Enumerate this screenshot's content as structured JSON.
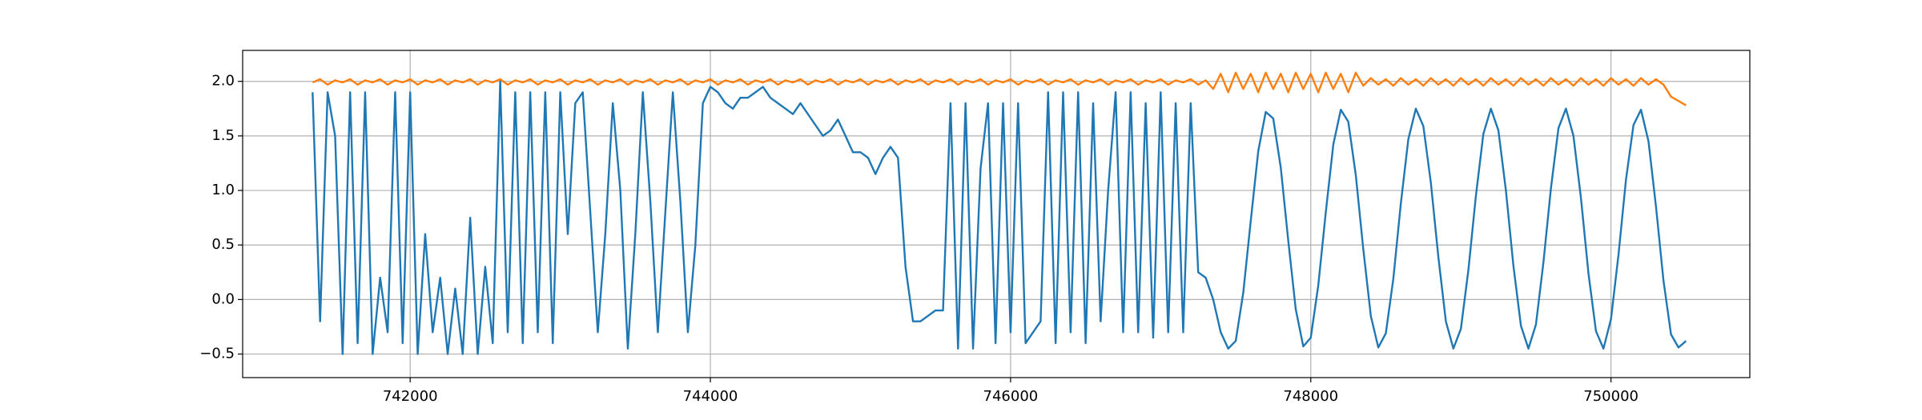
{
  "chart_data": {
    "type": "line",
    "x": [
      741350,
      741400,
      741450,
      741500,
      741550,
      741600,
      741650,
      741700,
      741750,
      741800,
      741850,
      741900,
      741950,
      742000,
      742050,
      742100,
      742150,
      742200,
      742250,
      742300,
      742350,
      742400,
      742450,
      742500,
      742550,
      742600,
      742650,
      742700,
      742750,
      742800,
      742850,
      742900,
      742950,
      743000,
      743050,
      743100,
      743150,
      743200,
      743250,
      743300,
      743350,
      743400,
      743450,
      743500,
      743550,
      743600,
      743650,
      743700,
      743750,
      743800,
      743850,
      743900,
      743950,
      744000,
      744050,
      744100,
      744150,
      744200,
      744250,
      744300,
      744350,
      744400,
      744450,
      744500,
      744550,
      744600,
      744650,
      744700,
      744750,
      744800,
      744850,
      744900,
      744950,
      745000,
      745050,
      745100,
      745150,
      745200,
      745250,
      745300,
      745350,
      745400,
      745450,
      745500,
      745550,
      745600,
      745650,
      745700,
      745750,
      745800,
      745850,
      745900,
      745950,
      746000,
      746050,
      746100,
      746150,
      746200,
      746250,
      746300,
      746350,
      746400,
      746450,
      746500,
      746550,
      746600,
      746650,
      746700,
      746750,
      746800,
      746850,
      746900,
      746950,
      747000,
      747050,
      747100,
      747150,
      747200,
      747250,
      747300,
      747350,
      747400,
      747450,
      747500,
      747550,
      747600,
      747650,
      747700,
      747750,
      747800,
      747850,
      747900,
      747950,
      748000,
      748050,
      748100,
      748150,
      748200,
      748250,
      748300,
      748350,
      748400,
      748450,
      748500,
      748550,
      748600,
      748650,
      748700,
      748750,
      748800,
      748850,
      748900,
      748950,
      749000,
      749050,
      749100,
      749150,
      749200,
      749250,
      749300,
      749350,
      749400,
      749450,
      749500,
      749550,
      749600,
      749650,
      749700,
      749750,
      749800,
      749850,
      749900,
      749950,
      750000,
      750050,
      750100,
      750150,
      750200,
      750250,
      750300,
      750350,
      750400,
      750450,
      750500
    ],
    "series": [
      {
        "color": "#1f77b4",
        "values": [
          1.9,
          -0.2,
          1.9,
          1.5,
          -0.5,
          1.9,
          -0.4,
          1.9,
          -0.5,
          0.2,
          -0.3,
          1.9,
          -0.4,
          1.9,
          -0.5,
          0.6,
          -0.3,
          0.2,
          -0.5,
          0.1,
          -0.5,
          0.75,
          -0.5,
          0.3,
          -0.4,
          2.0,
          -0.3,
          1.9,
          -0.4,
          1.9,
          -0.3,
          1.9,
          -0.4,
          1.9,
          0.6,
          1.8,
          1.9,
          0.8,
          -0.3,
          0.6,
          1.8,
          1.0,
          -0.45,
          0.6,
          1.9,
          0.9,
          -0.3,
          0.8,
          1.9,
          0.9,
          -0.3,
          0.5,
          1.8,
          1.95,
          1.9,
          1.8,
          1.75,
          1.85,
          1.85,
          1.9,
          1.95,
          1.85,
          1.8,
          1.75,
          1.7,
          1.8,
          1.7,
          1.6,
          1.5,
          1.55,
          1.65,
          1.5,
          1.35,
          1.35,
          1.3,
          1.15,
          1.3,
          1.4,
          1.3,
          0.3,
          -0.2,
          -0.2,
          -0.15,
          -0.1,
          -0.1,
          1.8,
          -0.45,
          1.8,
          -0.45,
          1.2,
          1.8,
          -0.4,
          1.8,
          -0.3,
          1.8,
          -0.4,
          -0.3,
          -0.2,
          1.9,
          -0.4,
          1.9,
          -0.3,
          1.9,
          -0.4,
          1.8,
          -0.2,
          1.0,
          1.9,
          -0.3,
          1.9,
          -0.3,
          1.8,
          -0.35,
          1.9,
          -0.3,
          1.8,
          -0.3,
          1.8,
          0.25,
          0.2,
          0.0,
          -0.3,
          -0.45,
          -0.38,
          0.06,
          0.72,
          1.36,
          1.72,
          1.66,
          1.21,
          0.54,
          -0.09,
          -0.43,
          -0.35,
          0.13,
          0.8,
          1.42,
          1.74,
          1.63,
          1.14,
          0.46,
          -0.15,
          -0.44,
          -0.31,
          0.19,
          0.88,
          1.47,
          1.75,
          1.59,
          1.07,
          0.39,
          -0.2,
          -0.45,
          -0.27,
          0.27,
          0.95,
          1.52,
          1.75,
          1.55,
          1.0,
          0.31,
          -0.24,
          -0.45,
          -0.23,
          0.34,
          1.02,
          1.57,
          1.75,
          1.5,
          0.93,
          0.24,
          -0.29,
          -0.45,
          -0.18,
          0.41,
          1.1,
          1.6,
          1.74,
          1.45,
          0.85,
          0.17,
          -0.32,
          -0.44,
          -0.38
        ]
      },
      {
        "color": "#ff7f0e",
        "values": [
          1.99,
          2.02,
          1.97,
          2.01,
          1.99,
          2.02,
          1.97,
          2.01,
          1.99,
          2.02,
          1.97,
          2.01,
          1.99,
          2.02,
          1.97,
          2.01,
          1.99,
          2.02,
          1.97,
          2.01,
          1.99,
          2.02,
          1.97,
          2.01,
          1.99,
          2.02,
          1.97,
          2.01,
          1.99,
          2.02,
          1.97,
          2.01,
          1.99,
          2.02,
          1.97,
          2.01,
          1.99,
          2.02,
          1.97,
          2.01,
          1.99,
          2.02,
          1.97,
          2.01,
          1.99,
          2.02,
          1.97,
          2.01,
          1.99,
          2.02,
          1.97,
          2.01,
          1.99,
          2.02,
          1.97,
          2.01,
          1.99,
          2.02,
          1.97,
          2.01,
          1.99,
          2.02,
          1.97,
          2.01,
          1.99,
          2.02,
          1.97,
          2.01,
          1.99,
          2.02,
          1.97,
          2.01,
          1.99,
          2.02,
          1.97,
          2.01,
          1.99,
          2.02,
          1.97,
          2.01,
          1.99,
          2.02,
          1.97,
          2.01,
          1.99,
          2.02,
          1.97,
          2.01,
          1.99,
          2.02,
          1.97,
          2.01,
          1.99,
          2.02,
          1.97,
          2.01,
          1.99,
          2.02,
          1.97,
          2.01,
          1.99,
          2.02,
          1.97,
          2.01,
          1.99,
          2.02,
          1.97,
          2.01,
          1.99,
          2.02,
          1.97,
          2.01,
          1.99,
          2.02,
          1.97,
          2.01,
          1.99,
          2.02,
          1.97,
          2.01,
          1.93,
          2.07,
          1.9,
          2.08,
          1.93,
          2.07,
          1.9,
          2.08,
          1.93,
          2.07,
          1.9,
          2.08,
          1.93,
          2.07,
          1.9,
          2.08,
          1.93,
          2.07,
          1.9,
          2.08,
          1.96,
          2.03,
          1.97,
          2.02,
          1.96,
          2.03,
          1.97,
          2.02,
          1.96,
          2.03,
          1.97,
          2.02,
          1.96,
          2.03,
          1.97,
          2.02,
          1.96,
          2.03,
          1.97,
          2.02,
          1.96,
          2.03,
          1.97,
          2.02,
          1.96,
          2.03,
          1.97,
          2.02,
          1.96,
          2.03,
          1.97,
          2.02,
          1.96,
          2.03,
          1.97,
          2.02,
          1.96,
          2.03,
          1.97,
          2.02,
          1.97,
          1.86,
          1.82,
          1.78
        ]
      }
    ],
    "xlim": [
      740884,
      750925
    ],
    "xticks": [
      742000,
      744000,
      746000,
      748000,
      750000
    ],
    "ylim": [
      -0.716,
      2.284
    ],
    "yticks": [
      {
        "value": -0.5,
        "label": "−0.5"
      },
      {
        "value": 0,
        "label": "0.0"
      },
      {
        "value": 0.5,
        "label": "0.5"
      },
      {
        "value": 1,
        "label": "1.0"
      },
      {
        "value": 1.5,
        "label": "1.5"
      },
      {
        "value": 2,
        "label": "2.0"
      }
    ],
    "grid": true
  }
}
